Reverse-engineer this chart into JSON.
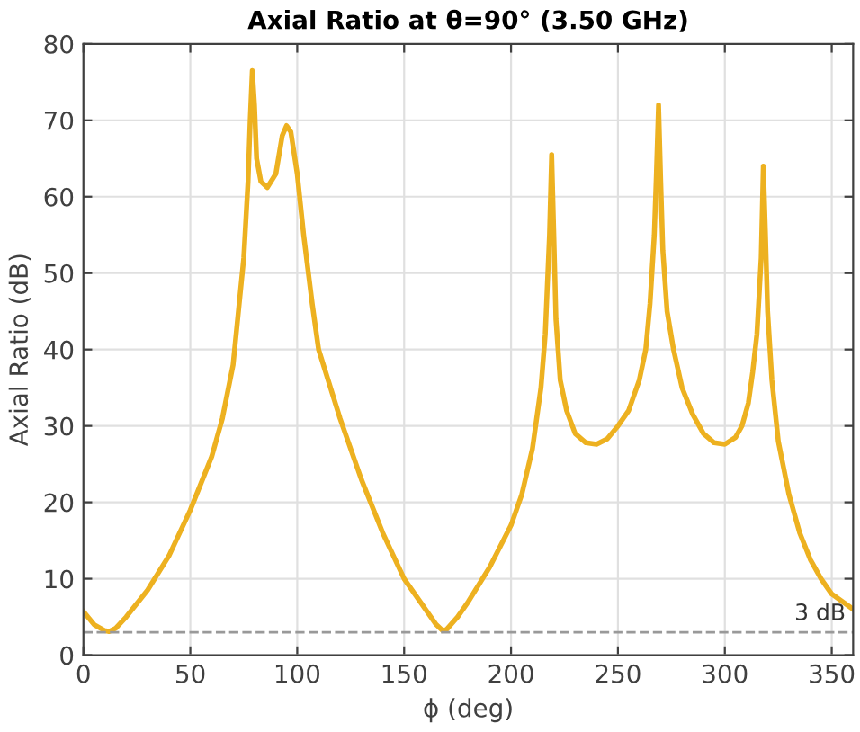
{
  "chart_data": {
    "type": "line",
    "title": "Axial Ratio at θ=90° (3.50 GHz)",
    "xlabel": "ϕ (deg)",
    "ylabel": "Axial Ratio (dB)",
    "xlim": [
      0,
      360
    ],
    "ylim": [
      0,
      80
    ],
    "xticks": [
      0,
      50,
      100,
      150,
      200,
      250,
      300,
      350
    ],
    "yticks": [
      0,
      10,
      20,
      30,
      40,
      50,
      60,
      70,
      80
    ],
    "grid": true,
    "series": [
      {
        "color": "#edb120",
        "x": [
          0,
          5,
          10,
          12,
          15,
          20,
          30,
          40,
          50,
          60,
          65,
          70,
          75,
          77,
          78,
          79,
          80,
          81,
          83,
          86,
          90,
          93,
          95,
          97,
          100,
          103,
          107,
          110,
          120,
          130,
          140,
          150,
          160,
          165,
          168,
          170,
          175,
          180,
          190,
          200,
          205,
          210,
          214,
          216,
          218,
          219,
          220,
          221,
          223,
          226,
          230,
          235,
          240,
          245,
          250,
          255,
          260,
          263,
          265,
          267,
          268,
          269,
          270,
          271,
          273,
          276,
          280,
          285,
          290,
          295,
          300,
          305,
          308,
          311,
          313,
          315,
          317,
          318,
          319,
          320,
          322,
          325,
          330,
          335,
          340,
          345,
          350,
          355,
          360
        ],
        "values": [
          5.7,
          4,
          3.2,
          3.1,
          3.5,
          5,
          8.5,
          13,
          19,
          26,
          31,
          38,
          52,
          62,
          70,
          76.5,
          72,
          65,
          62,
          61.2,
          63,
          68,
          69.3,
          68.5,
          63,
          55,
          46,
          40,
          31,
          23,
          16,
          10,
          6,
          4,
          3.2,
          3.4,
          5,
          7,
          11.5,
          17,
          21,
          27,
          35,
          42,
          55,
          65.5,
          55,
          44,
          36,
          32,
          29,
          27.8,
          27.6,
          28.3,
          30,
          32,
          36,
          40,
          46,
          55,
          63,
          72,
          62,
          53,
          45,
          40,
          35,
          31.5,
          29,
          27.8,
          27.6,
          28.5,
          30,
          33,
          37,
          42,
          52,
          64,
          55,
          45,
          36,
          28,
          21,
          16,
          12.5,
          10,
          8,
          7,
          6
        ]
      }
    ],
    "ref_lines": [
      {
        "axis": "y",
        "value": 3,
        "label": "3 dB",
        "color": "#999999",
        "line_style": "dashed"
      }
    ]
  }
}
